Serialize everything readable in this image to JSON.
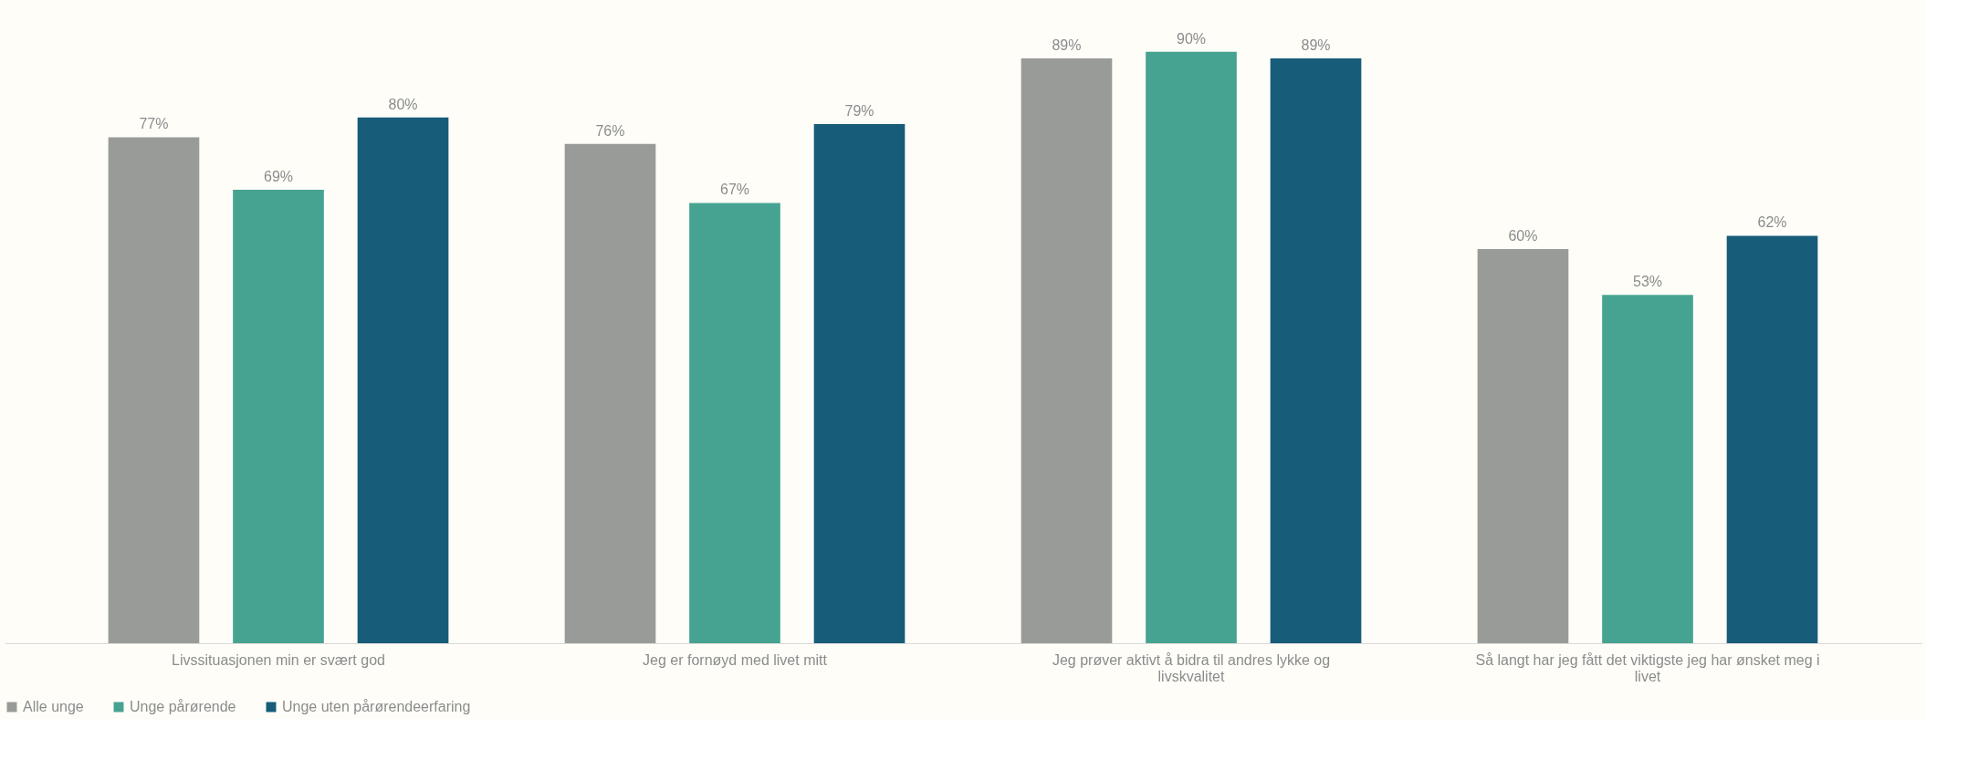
{
  "chart_data": {
    "type": "bar",
    "categories": [
      "Livssituasjonen min er svært god",
      "Jeg er fornøyd med livet mitt",
      "Jeg prøver aktivt å bidra til andres lykke og livskvalitet",
      "Så langt har jeg fått det viktigste jeg har ønsket meg i livet"
    ],
    "series": [
      {
        "name": "Alle unge",
        "color": "#999b98",
        "values": [
          77,
          76,
          89,
          60
        ],
        "value_labels": [
          "77%",
          "76%",
          "89%",
          "60%"
        ]
      },
      {
        "name": "Unge pårørende",
        "color": "#46a391",
        "values": [
          69,
          67,
          90,
          53
        ],
        "value_labels": [
          "69%",
          "67%",
          "90%",
          "53%"
        ]
      },
      {
        "name": "Unge uten pårørendeerfaring",
        "color": "#175c78",
        "values": [
          80,
          79,
          89,
          62
        ],
        "value_labels": [
          "80%",
          "79%",
          "89%",
          "62%"
        ]
      }
    ],
    "legend": "bottom",
    "grid": false
  }
}
